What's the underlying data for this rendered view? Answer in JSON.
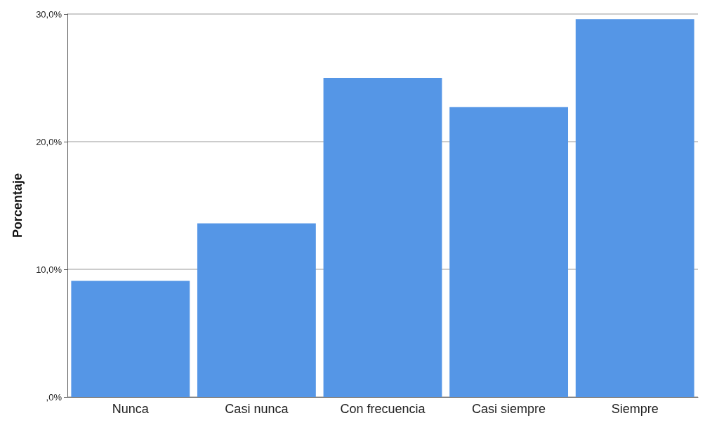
{
  "chart_data": {
    "type": "bar",
    "ylabel": "Porcentaje",
    "categories": [
      "Nunca",
      "Casi nunca",
      "Con frecuencia",
      "Casi siempre",
      "Siempre"
    ],
    "values": [
      9.1,
      13.6,
      25.0,
      22.7,
      29.6
    ],
    "color": "#5596e6",
    "ylim": [
      0,
      30
    ],
    "yticks": [
      {
        "value": 0,
        "label": ",0%"
      },
      {
        "value": 10,
        "label": "10,0%"
      },
      {
        "value": 20,
        "label": "20,0%"
      },
      {
        "value": 30,
        "label": "30,0%"
      }
    ],
    "grid": "y"
  }
}
